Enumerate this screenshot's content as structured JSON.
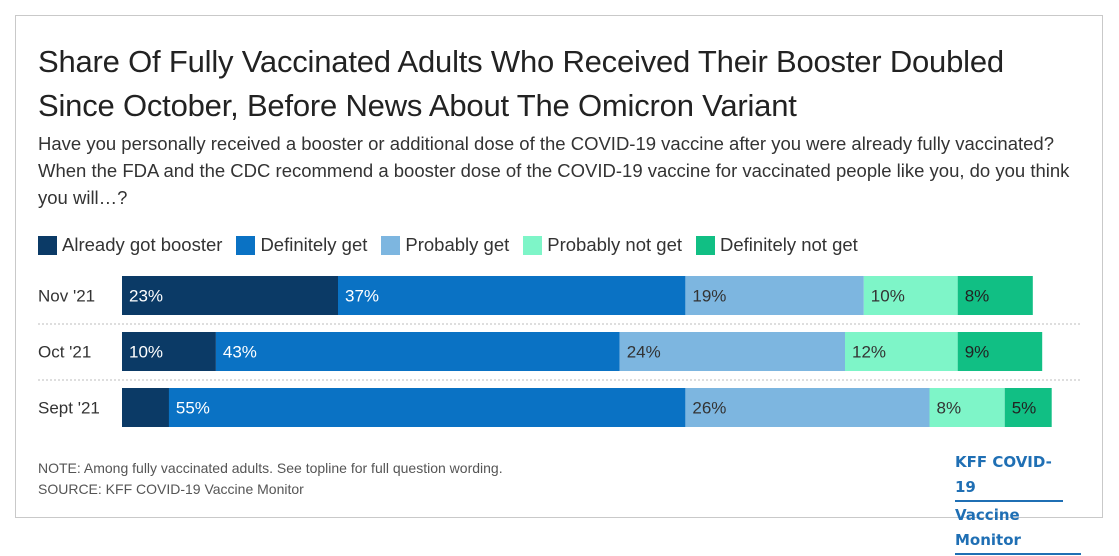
{
  "title": "Share Of Fully Vaccinated Adults Who Received Their Booster Doubled Since October, Before News About The Omicron Variant",
  "subtitle": "Have you personally received a booster or additional dose of the COVID-19 vaccine after you were already fully vaccinated? When the FDA and the CDC recommend a booster dose of the COVID-19 vaccine for vaccinated people like you, do you think you will…?",
  "note": "NOTE: Among fully vaccinated adults. See topline for full question wording.",
  "source": "SOURCE: KFF COVID-19 Vaccine Monitor",
  "brand": {
    "line1": "KFF COVID-19",
    "line2": "Vaccine Monitor"
  },
  "colors": {
    "already_got_booster": "#0b3a66",
    "definitely_get": "#0a72c4",
    "probably_get": "#7db6e0",
    "probably_not_get": "#7ef5c8",
    "definitely_not_get": "#11bf84",
    "brand": "#1f6fb4"
  },
  "chart_data": {
    "type": "bar",
    "orientation": "horizontal",
    "stacked": true,
    "categories": [
      "Nov '21",
      "Oct '21",
      "Sept '21"
    ],
    "series": [
      {
        "name": "Already got booster",
        "values": [
          23,
          10,
          5
        ],
        "labels": [
          "23%",
          "10%",
          ""
        ]
      },
      {
        "name": "Definitely get",
        "values": [
          37,
          43,
          55
        ],
        "labels": [
          "37%",
          "43%",
          "55%"
        ]
      },
      {
        "name": "Probably get",
        "values": [
          19,
          24,
          26
        ],
        "labels": [
          "19%",
          "24%",
          "26%"
        ]
      },
      {
        "name": "Probably not get",
        "values": [
          10,
          12,
          8
        ],
        "labels": [
          "10%",
          "12%",
          "8%"
        ]
      },
      {
        "name": "Definitely not get",
        "values": [
          8,
          9,
          5
        ],
        "labels": [
          "8%",
          "9%",
          "5%"
        ]
      }
    ],
    "xlim": [
      0,
      100
    ],
    "legend": "top",
    "grid": false
  }
}
